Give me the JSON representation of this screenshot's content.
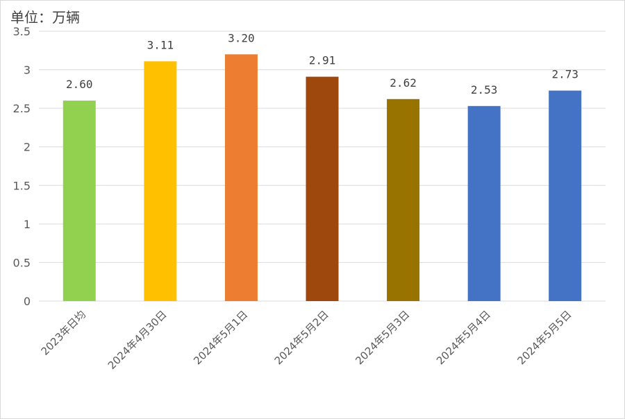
{
  "chart_data": {
    "type": "bar",
    "unit_label": "单位：万辆",
    "categories": [
      "2023年日均",
      "2024年4月30日",
      "2024年5月1日",
      "2024年5月2日",
      "2024年5月3日",
      "2024年5月4日",
      "2024年5月5日"
    ],
    "values": [
      2.6,
      3.11,
      3.2,
      2.91,
      2.62,
      2.53,
      2.73
    ],
    "data_labels": [
      "2.60",
      "3.11",
      "3.20",
      "2.91",
      "2.62",
      "2.53",
      "2.73"
    ],
    "bar_colors": [
      "#92d050",
      "#ffc000",
      "#ed7d31",
      "#9e480e",
      "#997300",
      "#4472c4",
      "#4472c4"
    ],
    "ylim": [
      0,
      3.5
    ],
    "yticks": [
      0,
      0.5,
      1,
      1.5,
      2,
      2.5,
      3,
      3.5
    ],
    "ytick_labels": [
      "0",
      "0.5",
      "1",
      "1.5",
      "2",
      "2.5",
      "3",
      "3.5"
    ],
    "grid": true,
    "gridline_color": "#d9d9d9",
    "legend": "none"
  }
}
